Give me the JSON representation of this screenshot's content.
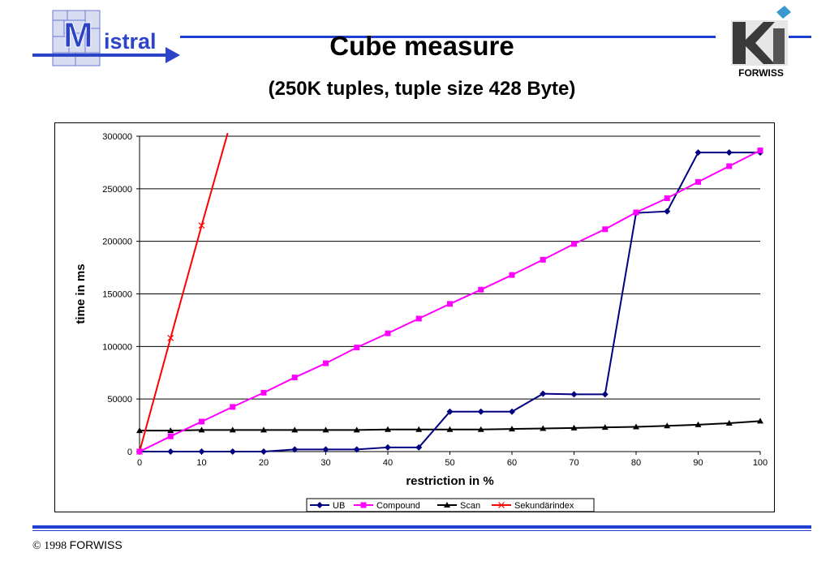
{
  "header": {
    "title": "Cube measure",
    "subtitle": "(250K tuples, tuple size 428 Byte)",
    "logo_left_text": "istral",
    "logo_left_initial": "M",
    "logo_right_text": "FORWISS"
  },
  "footer": {
    "copyright": "© 1998 ",
    "org": "FORWISS"
  },
  "colors": {
    "accent_blue": "#1f3fd0",
    "logo_blue": "#2b44c8",
    "UB": "#000080",
    "Compound": "#ff00ff",
    "Scan": "#000000",
    "Sekundärindex": "#ff0000"
  },
  "chart_data": {
    "type": "line",
    "title": "",
    "xlabel": "restriction in %",
    "ylabel": "time in ms",
    "xlim": [
      0,
      100
    ],
    "ylim": [
      0,
      300000
    ],
    "x_ticks": [
      "0",
      "10",
      "20",
      "30",
      "40",
      "50",
      "60",
      "70",
      "80",
      "90",
      "100"
    ],
    "y_ticks": [
      "0",
      "50000",
      "100000",
      "150000",
      "200000",
      "250000",
      "300000"
    ],
    "grid": "horizontal",
    "legend_position": "bottom",
    "series": [
      {
        "name": "UB",
        "marker": "diamond",
        "x": [
          0,
          5,
          10,
          15,
          20,
          25,
          30,
          35,
          40,
          45,
          50,
          55,
          60,
          65,
          70,
          75,
          80,
          85,
          90,
          95,
          100
        ],
        "y": [
          0,
          0,
          0,
          0,
          0,
          2000,
          2000,
          2000,
          4000,
          4000,
          38000,
          38000,
          38000,
          55000,
          54500,
          54500,
          227000,
          228500,
          284500,
          284500,
          284500
        ]
      },
      {
        "name": "Compound",
        "marker": "square",
        "x": [
          0,
          5,
          10,
          15,
          20,
          25,
          30,
          35,
          40,
          45,
          50,
          55,
          60,
          65,
          70,
          75,
          80,
          85,
          90,
          95,
          100
        ],
        "y": [
          0,
          14500,
          28500,
          42500,
          56000,
          70500,
          84000,
          99000,
          112500,
          126500,
          140500,
          154000,
          168000,
          182500,
          197500,
          211500,
          227500,
          241000,
          256500,
          271500,
          286500
        ]
      },
      {
        "name": "Scan",
        "marker": "triangle",
        "x": [
          0,
          5,
          10,
          15,
          20,
          25,
          30,
          35,
          40,
          45,
          50,
          55,
          60,
          65,
          70,
          75,
          80,
          85,
          90,
          95,
          100
        ],
        "y": [
          20000,
          20000,
          20500,
          20500,
          20500,
          20500,
          20500,
          20500,
          21000,
          21000,
          21000,
          21000,
          21500,
          22000,
          22500,
          23000,
          23500,
          24500,
          25500,
          27000,
          29000
        ]
      },
      {
        "name": "Sekundärindex",
        "marker": "x",
        "x": [
          0,
          5,
          10,
          14.2
        ],
        "y": [
          0,
          108000,
          215000,
          303000
        ]
      }
    ]
  }
}
